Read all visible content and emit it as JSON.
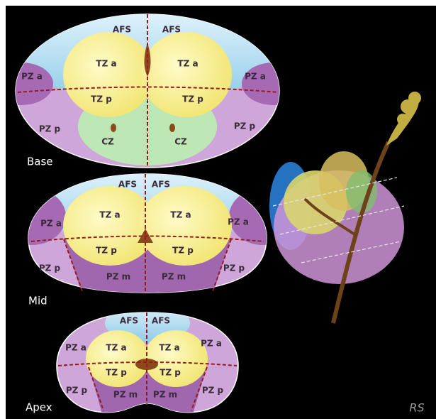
{
  "sections": [
    {
      "label": "Base",
      "regions": [
        "AFS",
        "AFS",
        "TZ a",
        "TZ a",
        "PZ a",
        "PZ a",
        "TZ p",
        "TZ p",
        "PZ p",
        "PZ p",
        "CZ",
        "CZ"
      ]
    },
    {
      "label": "Mid",
      "regions": [
        "AFS",
        "AFS",
        "TZ a",
        "TZ a",
        "PZ a",
        "PZ a",
        "TZ p",
        "TZ p",
        "PZ p",
        "PZ p",
        "PZ m",
        "PZ m"
      ]
    },
    {
      "label": "Apex",
      "regions": [
        "AFS",
        "AFS",
        "TZ a",
        "TZ a",
        "PZ a",
        "PZ a",
        "TZ p",
        "TZ p",
        "PZ p",
        "PZ p",
        "PZ m",
        "PZ m"
      ]
    }
  ],
  "signature": "RS"
}
